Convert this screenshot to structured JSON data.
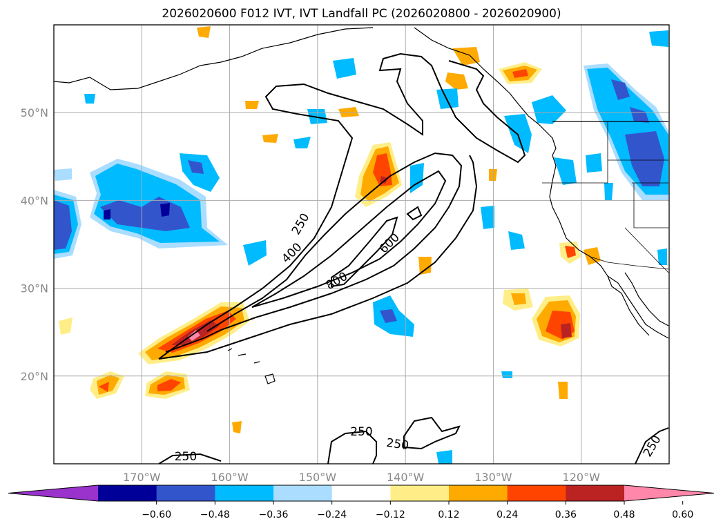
{
  "title": "2026020600 F012 IVT, IVT Landfall PC (2026020800 - 2026020900)",
  "map": {
    "lon_range": [
      -180,
      -110
    ],
    "lat_range": [
      10,
      60
    ],
    "lon_ticks": [
      {
        "lon": -170,
        "label": "170°W"
      },
      {
        "lon": -160,
        "label": "160°W"
      },
      {
        "lon": -150,
        "label": "150°W"
      },
      {
        "lon": -140,
        "label": "140°W"
      },
      {
        "lon": -130,
        "label": "130°W"
      },
      {
        "lon": -120,
        "label": "120°W"
      }
    ],
    "lat_ticks": [
      {
        "lat": 20,
        "label": "20°N"
      },
      {
        "lat": 30,
        "label": "30°N"
      },
      {
        "lat": 40,
        "label": "40°N"
      },
      {
        "lat": 50,
        "label": "50°N"
      }
    ],
    "grid": true
  },
  "ivt_contours": {
    "levels": [
      250,
      400,
      600,
      800
    ],
    "labels": [
      {
        "text": "250",
        "lon": -151.9,
        "lat": 37.3,
        "angle": -60
      },
      {
        "text": "400",
        "lon": -152.9,
        "lat": 34.0,
        "angle": -45
      },
      {
        "text": "600",
        "lon": -141.8,
        "lat": 35.1,
        "angle": -45
      },
      {
        "text": "800",
        "lon": -147.8,
        "lat": 30.8,
        "angle": -30
      },
      {
        "text": "250",
        "lon": -165.0,
        "lat": 10.8,
        "angle": 0
      },
      {
        "text": "250",
        "lon": -145.0,
        "lat": 13.6,
        "angle": 0
      },
      {
        "text": "250",
        "lon": -140.9,
        "lat": 12.2,
        "angle": 8
      },
      {
        "text": "250",
        "lon": -111.9,
        "lat": 12.0,
        "angle": -60
      }
    ]
  },
  "colorbar": {
    "tick_values": [
      "−0.60",
      "−0.48",
      "−0.36",
      "−0.24",
      "−0.12",
      "0.12",
      "0.24",
      "0.36",
      "0.48",
      "0.60"
    ],
    "colors": [
      "#9933cc",
      "#000099",
      "#3355cc",
      "#00bbff",
      "#aaddff",
      "#ffffff",
      "#ffee88",
      "#ffaa00",
      "#ff4400",
      "#bb2222",
      "#ff88aa"
    ]
  },
  "anomaly_features": [
    {
      "lon": -162.0,
      "lat": 25.3,
      "value": 0.6
    },
    {
      "lon": -141.0,
      "lat": 43.1,
      "value": 0.48
    },
    {
      "lon": -122.5,
      "lat": 26.0,
      "value": 0.48
    },
    {
      "lon": -165.5,
      "lat": 18.8,
      "value": 0.36
    },
    {
      "lon": -172.0,
      "lat": 38.7,
      "value": -0.48
    },
    {
      "lon": -178.5,
      "lat": 37.7,
      "value": -0.36
    },
    {
      "lon": -114.5,
      "lat": 45.0,
      "value": -0.36
    },
    {
      "lon": -118.5,
      "lat": 52.6,
      "value": -0.36
    },
    {
      "lon": -128.0,
      "lat": 55.0,
      "value": 0.36
    }
  ]
}
